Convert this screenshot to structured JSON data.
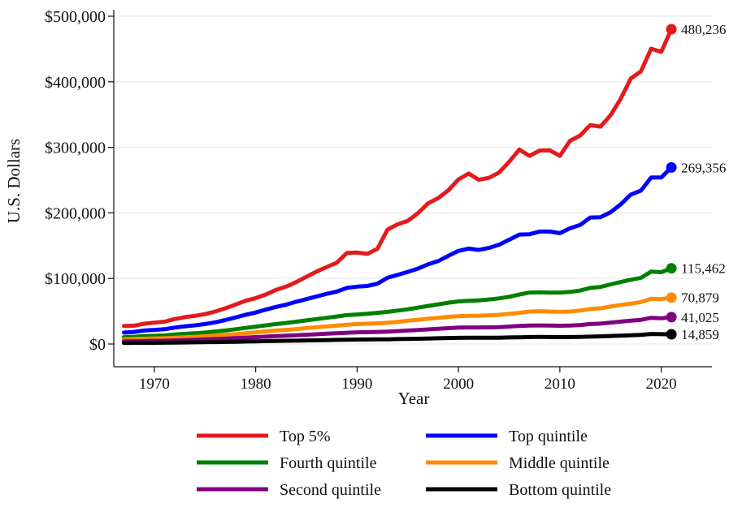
{
  "chart_data": {
    "type": "line",
    "title": "",
    "xlabel": "Year",
    "ylabel": "U.S. Dollars",
    "xlim": [
      1966,
      2025
    ],
    "ylim": [
      0,
      500000
    ],
    "x_ticks": [
      1970,
      1980,
      1990,
      2000,
      2010,
      2020
    ],
    "x_tick_labels": [
      "1970",
      "1980",
      "1990",
      "2000",
      "2010",
      "2020"
    ],
    "y_ticks": [
      0,
      100000,
      200000,
      300000,
      400000,
      500000
    ],
    "y_tick_labels": [
      "$0",
      "$100,000",
      "$200,000",
      "$300,000",
      "$400,000",
      "$500,000"
    ],
    "grid": true,
    "legend_position": "bottom",
    "x": [
      1967,
      1968,
      1969,
      1970,
      1971,
      1972,
      1973,
      1974,
      1975,
      1976,
      1977,
      1978,
      1979,
      1980,
      1981,
      1982,
      1983,
      1984,
      1985,
      1986,
      1987,
      1988,
      1989,
      1990,
      1991,
      1992,
      1993,
      1994,
      1995,
      1996,
      1997,
      1998,
      1999,
      2000,
      2001,
      2002,
      2003,
      2004,
      2005,
      2006,
      2007,
      2008,
      2009,
      2010,
      2011,
      2012,
      2013,
      2014,
      2015,
      2016,
      2017,
      2018,
      2019,
      2020,
      2021
    ],
    "series": [
      {
        "name": "Top 5%",
        "color": "#e41a1c",
        "end_label": "480,236",
        "values": [
          27500,
          28000,
          31000,
          32500,
          34000,
          38000,
          41000,
          43000,
          45500,
          49500,
          54500,
          60000,
          66000,
          70000,
          75500,
          82500,
          87500,
          94500,
          102500,
          110500,
          117500,
          124000,
          139000,
          139500,
          137500,
          145000,
          174500,
          182500,
          188000,
          199500,
          214500,
          222500,
          234500,
          251000,
          260000,
          250500,
          253500,
          261500,
          278000,
          296500,
          287000,
          295000,
          295500,
          287000,
          310000,
          318000,
          334000,
          331500,
          349000,
          374000,
          405000,
          416000,
          450500,
          445500,
          480236
        ]
      },
      {
        "name": "Top quintile",
        "color": "#0000ff",
        "end_label": "269,356",
        "values": [
          17500,
          18500,
          20500,
          21500,
          22500,
          25000,
          27000,
          28500,
          30500,
          33000,
          36500,
          40500,
          44500,
          48000,
          52500,
          56500,
          60000,
          64500,
          68500,
          72500,
          76500,
          80000,
          85500,
          87500,
          88500,
          92000,
          101000,
          105500,
          110000,
          115000,
          121500,
          126500,
          134500,
          142000,
          145500,
          143500,
          146500,
          151500,
          159000,
          167000,
          167500,
          171500,
          171500,
          169000,
          176500,
          181500,
          193000,
          193500,
          201000,
          213000,
          228000,
          234000,
          254000,
          254000,
          269356
        ]
      },
      {
        "name": "Fourth quintile",
        "color": "#008000",
        "end_label": "115,462",
        "values": [
          10500,
          11000,
          12000,
          12500,
          13000,
          14500,
          15500,
          16500,
          17500,
          19000,
          20500,
          22500,
          24500,
          26500,
          28500,
          30500,
          32000,
          34000,
          36000,
          38000,
          40000,
          42000,
          44000,
          45000,
          46000,
          47500,
          49000,
          51000,
          53000,
          55500,
          58000,
          60500,
          63000,
          65000,
          66000,
          66500,
          68000,
          69500,
          72000,
          75500,
          78500,
          79000,
          78500,
          78500,
          79500,
          81500,
          85500,
          87000,
          91000,
          94500,
          98000,
          101000,
          110500,
          109500,
          115462
        ]
      },
      {
        "name": "Middle quintile",
        "color": "#ff8c00",
        "end_label": "70,879",
        "values": [
          7000,
          7500,
          8000,
          8500,
          8800,
          9500,
          10200,
          11000,
          11800,
          12800,
          13800,
          15000,
          16500,
          17800,
          19200,
          20500,
          21500,
          22800,
          24200,
          25500,
          26800,
          28000,
          29500,
          30500,
          31000,
          31500,
          32500,
          33800,
          35500,
          37000,
          38500,
          40000,
          41500,
          42500,
          43000,
          43200,
          43800,
          44500,
          46000,
          47500,
          49500,
          50000,
          49500,
          49000,
          49500,
          51000,
          53500,
          54500,
          57000,
          59500,
          61500,
          64000,
          69000,
          68500,
          70879
        ]
      },
      {
        "name": "Second quintile",
        "color": "#800080",
        "end_label": "41,025",
        "values": [
          4000,
          4200,
          4500,
          4800,
          5000,
          5500,
          6000,
          6500,
          7000,
          7500,
          8200,
          9000,
          9800,
          10500,
          11300,
          12000,
          12600,
          13300,
          14100,
          14900,
          15700,
          16400,
          17200,
          17800,
          18100,
          18400,
          18900,
          19700,
          20600,
          21300,
          22300,
          23200,
          24100,
          25000,
          25200,
          25200,
          25400,
          25700,
          26600,
          27600,
          28200,
          28400,
          28200,
          27800,
          28100,
          28900,
          30400,
          31100,
          32700,
          34200,
          35500,
          36900,
          40000,
          39200,
          41025
        ]
      },
      {
        "name": "Bottom quintile",
        "color": "#000000",
        "end_label": "14,859",
        "values": [
          1600,
          1700,
          1800,
          1900,
          2000,
          2200,
          2400,
          2600,
          2800,
          3000,
          3200,
          3500,
          3800,
          4100,
          4400,
          4700,
          4900,
          5100,
          5400,
          5700,
          6000,
          6300,
          6600,
          6800,
          6900,
          7000,
          7200,
          7500,
          7800,
          8100,
          8400,
          8800,
          9100,
          9400,
          9500,
          9500,
          9600,
          9700,
          10000,
          10300,
          10700,
          10800,
          10700,
          10500,
          10600,
          10900,
          11300,
          11600,
          12200,
          12800,
          13400,
          14000,
          15400,
          15000,
          14859
        ]
      }
    ]
  }
}
